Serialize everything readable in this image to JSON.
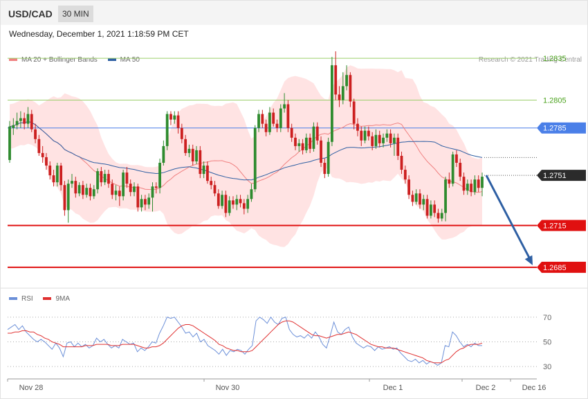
{
  "header": {
    "symbol": "USD/CAD",
    "timeframe": "30 MIN"
  },
  "datetime": "Wednesday, December 1, 2021 1:18:59 PM CET",
  "legend": {
    "ma20": "MA 20 + Bollinger Bands",
    "ma50": "MA 50",
    "ma20_color": "#f08080",
    "ma50_color": "#2e5fa3"
  },
  "credit": "Research © 2021 Trading Central",
  "rsi_legend": {
    "rsi": "RSI",
    "ma9": "9MA",
    "rsi_color": "#6b8fd8",
    "ma9_color": "#e03030"
  },
  "colors": {
    "bull": "#2e8b2e",
    "bear": "#cc2020",
    "band": "#ffdede",
    "resistance": "#9ccf6a",
    "pivot": "#4a7fe8",
    "support": "#e01010",
    "arrow": "#2e5fa3"
  },
  "chart_data": {
    "type": "candlestick",
    "ylim": [
      1.2673,
      1.2847
    ],
    "x_ticks": [
      "Nov 28",
      "Nov 30",
      "Dec 1",
      "Dec 2",
      "Dec 16"
    ],
    "levels": [
      {
        "label": "1.2835",
        "value": 1.2835,
        "kind": "resistance"
      },
      {
        "label": "1.2805",
        "value": 1.2805,
        "kind": "resistance"
      },
      {
        "label": "1.2785",
        "value": 1.2785,
        "kind": "pivot"
      },
      {
        "label": "1.2751",
        "value": 1.2751,
        "kind": "last"
      },
      {
        "label": "1.2715",
        "value": 1.2715,
        "kind": "support"
      },
      {
        "label": "1.2685",
        "value": 1.2685,
        "kind": "support"
      }
    ],
    "forecast": {
      "from": 1.2751,
      "to": 1.2685
    },
    "candles": [
      [
        1.2762,
        1.2786,
        1.279,
        1.276
      ],
      [
        1.2785,
        1.2787,
        1.2792,
        1.278
      ],
      [
        1.2787,
        1.279,
        1.2796,
        1.2784
      ],
      [
        1.279,
        1.2792,
        1.2797,
        1.2785
      ],
      [
        1.2792,
        1.2788,
        1.2796,
        1.2784
      ],
      [
        1.2788,
        1.2795,
        1.28,
        1.2785
      ],
      [
        1.2795,
        1.2784,
        1.2798,
        1.2782
      ],
      [
        1.2784,
        1.2777,
        1.2788,
        1.2774
      ],
      [
        1.2777,
        1.2767,
        1.278,
        1.2765
      ],
      [
        1.2767,
        1.2764,
        1.2772,
        1.276
      ],
      [
        1.2764,
        1.2758,
        1.2767,
        1.2755
      ],
      [
        1.2758,
        1.2751,
        1.2761,
        1.2748
      ],
      [
        1.2751,
        1.2746,
        1.2755,
        1.2743
      ],
      [
        1.2746,
        1.2758,
        1.276,
        1.2743
      ],
      [
        1.2758,
        1.2744,
        1.276,
        1.274
      ],
      [
        1.2744,
        1.2726,
        1.2747,
        1.2722
      ],
      [
        1.2726,
        1.2745,
        1.2748,
        1.2717
      ],
      [
        1.2745,
        1.2747,
        1.2752,
        1.2742
      ],
      [
        1.2747,
        1.2738,
        1.275,
        1.2735
      ],
      [
        1.2738,
        1.2744,
        1.2746,
        1.2736
      ],
      [
        1.2744,
        1.2737,
        1.2747,
        1.2734
      ],
      [
        1.2737,
        1.2742,
        1.2745,
        1.2735
      ],
      [
        1.2742,
        1.2736,
        1.2745,
        1.2733
      ],
      [
        1.2736,
        1.2741,
        1.2744,
        1.2734
      ],
      [
        1.2741,
        1.2754,
        1.2756,
        1.2738
      ],
      [
        1.2754,
        1.2746,
        1.2757,
        1.2743
      ],
      [
        1.2746,
        1.2752,
        1.2755,
        1.2744
      ],
      [
        1.2752,
        1.2745,
        1.2755,
        1.2742
      ],
      [
        1.2745,
        1.2737,
        1.2748,
        1.2734
      ],
      [
        1.2737,
        1.274,
        1.2744,
        1.2733
      ],
      [
        1.274,
        1.2736,
        1.2743,
        1.2729
      ],
      [
        1.2736,
        1.2753,
        1.2755,
        1.2733
      ],
      [
        1.2753,
        1.2745,
        1.2757,
        1.2742
      ],
      [
        1.2745,
        1.2739,
        1.2748,
        1.2736
      ],
      [
        1.2739,
        1.2743,
        1.2746,
        1.2736
      ],
      [
        1.2743,
        1.2728,
        1.2745,
        1.2725
      ],
      [
        1.2728,
        1.2734,
        1.2737,
        1.2725
      ],
      [
        1.2734,
        1.273,
        1.2737,
        1.2726
      ],
      [
        1.273,
        1.2735,
        1.2738,
        1.2727
      ],
      [
        1.2735,
        1.2743,
        1.2746,
        1.2725
      ],
      [
        1.2743,
        1.2742,
        1.2746,
        1.2738
      ],
      [
        1.2742,
        1.276,
        1.2763,
        1.2738
      ],
      [
        1.276,
        1.2772,
        1.2776,
        1.2758
      ],
      [
        1.2772,
        1.2795,
        1.2797,
        1.2769
      ],
      [
        1.2795,
        1.2791,
        1.2797,
        1.2787
      ],
      [
        1.2791,
        1.2794,
        1.2797,
        1.2788
      ],
      [
        1.2794,
        1.2785,
        1.2797,
        1.2781
      ],
      [
        1.2785,
        1.2777,
        1.2788,
        1.2774
      ],
      [
        1.2777,
        1.2767,
        1.278,
        1.2765
      ],
      [
        1.2767,
        1.277,
        1.2773,
        1.2764
      ],
      [
        1.277,
        1.2761,
        1.2773,
        1.2758
      ],
      [
        1.2761,
        1.2769,
        1.2772,
        1.2759
      ],
      [
        1.2769,
        1.2752,
        1.2772,
        1.2749
      ],
      [
        1.2752,
        1.2758,
        1.2761,
        1.2749
      ],
      [
        1.2758,
        1.2747,
        1.2761,
        1.2745
      ],
      [
        1.2747,
        1.2744,
        1.275,
        1.2741
      ],
      [
        1.2744,
        1.2738,
        1.2747,
        1.2736
      ],
      [
        1.2738,
        1.2729,
        1.2741,
        1.2727
      ],
      [
        1.2729,
        1.2737,
        1.274,
        1.2727
      ],
      [
        1.2737,
        1.2724,
        1.274,
        1.2721
      ],
      [
        1.2724,
        1.2733,
        1.2736,
        1.2722
      ],
      [
        1.2733,
        1.273,
        1.2736,
        1.2727
      ],
      [
        1.273,
        1.2734,
        1.2737,
        1.2726
      ],
      [
        1.2734,
        1.2731,
        1.2737,
        1.2728
      ],
      [
        1.2731,
        1.2727,
        1.2734,
        1.2723
      ],
      [
        1.2727,
        1.2734,
        1.2737,
        1.2724
      ],
      [
        1.2734,
        1.2741,
        1.2745,
        1.2732
      ],
      [
        1.2741,
        1.2785,
        1.2787,
        1.2739
      ],
      [
        1.2785,
        1.2795,
        1.2798,
        1.2782
      ],
      [
        1.2795,
        1.2788,
        1.2798,
        1.2785
      ],
      [
        1.2788,
        1.2782,
        1.2791,
        1.2779
      ],
      [
        1.2782,
        1.2796,
        1.28,
        1.278
      ],
      [
        1.2796,
        1.2788,
        1.2799,
        1.2786
      ],
      [
        1.2788,
        1.2785,
        1.2791,
        1.2782
      ],
      [
        1.2785,
        1.2799,
        1.2802,
        1.2782
      ],
      [
        1.2799,
        1.2802,
        1.281,
        1.2796
      ],
      [
        1.2802,
        1.2785,
        1.2805,
        1.2782
      ],
      [
        1.2785,
        1.2778,
        1.2788,
        1.2775
      ],
      [
        1.2778,
        1.2772,
        1.2781,
        1.2769
      ],
      [
        1.2772,
        1.2774,
        1.2777,
        1.2768
      ],
      [
        1.2774,
        1.2769,
        1.2777,
        1.2766
      ],
      [
        1.2769,
        1.2778,
        1.2781,
        1.2767
      ],
      [
        1.2778,
        1.277,
        1.2781,
        1.2767
      ],
      [
        1.277,
        1.2786,
        1.2789,
        1.2768
      ],
      [
        1.2786,
        1.2776,
        1.2789,
        1.2773
      ],
      [
        1.2776,
        1.276,
        1.2779,
        1.2757
      ],
      [
        1.276,
        1.2752,
        1.2763,
        1.2749
      ],
      [
        1.2752,
        1.2775,
        1.2778,
        1.275
      ],
      [
        1.2775,
        1.283,
        1.2836,
        1.2772
      ],
      [
        1.283,
        1.2809,
        1.284,
        1.2805
      ],
      [
        1.2809,
        1.2805,
        1.2815,
        1.28
      ],
      [
        1.2805,
        1.2815,
        1.2825,
        1.2802
      ],
      [
        1.2815,
        1.2823,
        1.283,
        1.2812
      ],
      [
        1.2823,
        1.2804,
        1.2825,
        1.28
      ],
      [
        1.2804,
        1.2788,
        1.2806,
        1.2784
      ],
      [
        1.2788,
        1.2783,
        1.2792,
        1.2779
      ],
      [
        1.2783,
        1.2776,
        1.2786,
        1.2772
      ],
      [
        1.2776,
        1.2783,
        1.2786,
        1.2774
      ],
      [
        1.2783,
        1.2779,
        1.2786,
        1.2776
      ],
      [
        1.2779,
        1.2772,
        1.2782,
        1.2769
      ],
      [
        1.2772,
        1.278,
        1.2784,
        1.277
      ],
      [
        1.278,
        1.2774,
        1.2783,
        1.2771
      ],
      [
        1.2774,
        1.2778,
        1.2781,
        1.2771
      ],
      [
        1.2778,
        1.2781,
        1.2784,
        1.2775
      ],
      [
        1.2781,
        1.2774,
        1.2784,
        1.2771
      ],
      [
        1.2774,
        1.2778,
        1.2781,
        1.2765
      ],
      [
        1.2778,
        1.2765,
        1.2781,
        1.2762
      ],
      [
        1.2765,
        1.2755,
        1.2768,
        1.2752
      ],
      [
        1.2755,
        1.2748,
        1.2758,
        1.2745
      ],
      [
        1.2748,
        1.2737,
        1.2751,
        1.2734
      ],
      [
        1.2737,
        1.2732,
        1.274,
        1.2729
      ],
      [
        1.2732,
        1.2738,
        1.2741,
        1.273
      ],
      [
        1.2738,
        1.273,
        1.2741,
        1.2727
      ],
      [
        1.273,
        1.2734,
        1.2737,
        1.2726
      ],
      [
        1.2734,
        1.2722,
        1.2737,
        1.272
      ],
      [
        1.2722,
        1.273,
        1.2733,
        1.272
      ],
      [
        1.273,
        1.2724,
        1.2733,
        1.2721
      ],
      [
        1.2724,
        1.272,
        1.2727,
        1.2717
      ],
      [
        1.272,
        1.2724,
        1.2727,
        1.2718
      ],
      [
        1.2724,
        1.2748,
        1.275,
        1.2718
      ],
      [
        1.2748,
        1.2745,
        1.2753,
        1.2742
      ],
      [
        1.2745,
        1.2766,
        1.2768,
        1.2743
      ],
      [
        1.2766,
        1.276,
        1.2769,
        1.2757
      ],
      [
        1.276,
        1.275,
        1.2763,
        1.2747
      ],
      [
        1.275,
        1.274,
        1.2753,
        1.2737
      ],
      [
        1.274,
        1.2745,
        1.2748,
        1.2737
      ],
      [
        1.2745,
        1.2739,
        1.2748,
        1.2736
      ],
      [
        1.2739,
        1.2748,
        1.2751,
        1.2737
      ],
      [
        1.2748,
        1.2742,
        1.2751,
        1.2739
      ],
      [
        1.2742,
        1.275,
        1.2753,
        1.2736
      ]
    ],
    "rsi_panel": {
      "levels": [
        70,
        50,
        30
      ],
      "ylim": [
        20,
        80
      ],
      "series": [
        {
          "name": "RSI",
          "values": [
            60,
            62,
            64,
            60,
            63,
            58,
            55,
            52,
            50,
            52,
            50,
            47,
            44,
            49,
            45,
            38,
            49,
            50,
            46,
            49,
            46,
            48,
            45,
            47,
            53,
            50,
            52,
            48,
            45,
            47,
            45,
            52,
            50,
            48,
            49,
            42,
            45,
            43,
            46,
            50,
            49,
            57,
            63,
            70,
            69,
            70,
            66,
            62,
            57,
            58,
            54,
            57,
            50,
            52,
            47,
            45,
            43,
            40,
            44,
            39,
            43,
            42,
            44,
            43,
            40,
            44,
            47,
            67,
            70,
            68,
            65,
            70,
            66,
            64,
            69,
            70,
            60,
            56,
            54,
            55,
            53,
            56,
            53,
            58,
            54,
            48,
            45,
            55,
            66,
            58,
            56,
            60,
            62,
            54,
            49,
            47,
            45,
            47,
            46,
            43,
            46,
            44,
            45,
            46,
            44,
            45,
            41,
            38,
            35,
            34,
            36,
            33,
            35,
            32,
            34,
            33,
            31,
            33,
            47,
            46,
            58,
            55,
            50,
            46,
            48,
            46,
            49,
            47,
            47
          ]
        },
        {
          "name": "9MA",
          "values": [
            57,
            57,
            58,
            58,
            59,
            59,
            58,
            58,
            56,
            55,
            53,
            52,
            50,
            49,
            48,
            46,
            46,
            46,
            46,
            46,
            46,
            47,
            47,
            47,
            48,
            48,
            48,
            48,
            47,
            47,
            47,
            48,
            48,
            48,
            48,
            47,
            46,
            45,
            45,
            46,
            46,
            47,
            49,
            52,
            55,
            58,
            61,
            63,
            64,
            64,
            63,
            61,
            59,
            57,
            55,
            53,
            51,
            48,
            47,
            45,
            44,
            43,
            43,
            42,
            42,
            42,
            43,
            46,
            49,
            52,
            55,
            58,
            61,
            64,
            66,
            67,
            67,
            66,
            64,
            62,
            60,
            58,
            56,
            55,
            55,
            54,
            53,
            54,
            55,
            56,
            56,
            57,
            58,
            57,
            56,
            54,
            52,
            50,
            48,
            47,
            46,
            46,
            45,
            45,
            45,
            44,
            43,
            42,
            41,
            40,
            39,
            38,
            37,
            35,
            34,
            33,
            33,
            33,
            35,
            36,
            39,
            42,
            44,
            45,
            47,
            48,
            48,
            48,
            49
          ]
        }
      ]
    }
  }
}
